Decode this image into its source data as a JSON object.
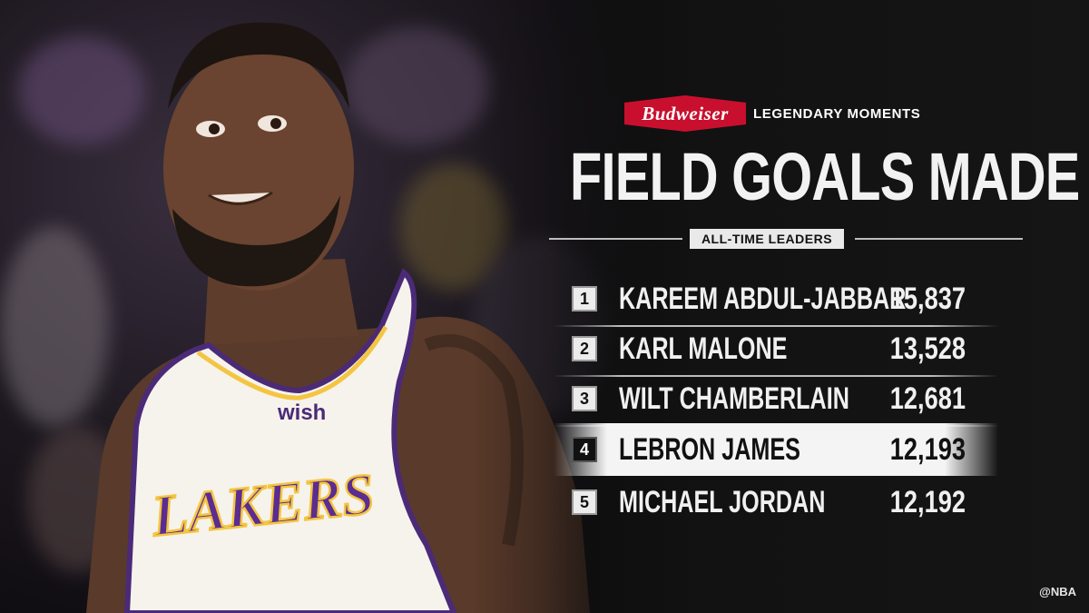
{
  "sponsor": {
    "brand": "Budweiser",
    "tagline": "LEGENDARY MOMENTS",
    "brand_color": "#c8102e"
  },
  "headline": "FIELD GOALS MADE",
  "subheadline": "ALL-TIME LEADERS",
  "jersey": {
    "patch": "wish",
    "team": "LAKERS"
  },
  "leaders": [
    {
      "rank": "1",
      "name": "KAREEM ABDUL-JABBAR",
      "value": "15,837",
      "highlight": false
    },
    {
      "rank": "2",
      "name": "KARL MALONE",
      "value": "13,528",
      "highlight": false
    },
    {
      "rank": "3",
      "name": "WILT CHAMBERLAIN",
      "value": "12,681",
      "highlight": false
    },
    {
      "rank": "4",
      "name": "LEBRON JAMES",
      "value": "12,193",
      "highlight": true
    },
    {
      "rank": "5",
      "name": "MICHAEL JORDAN",
      "value": "12,192",
      "highlight": false
    }
  ],
  "handle": "@NBA"
}
